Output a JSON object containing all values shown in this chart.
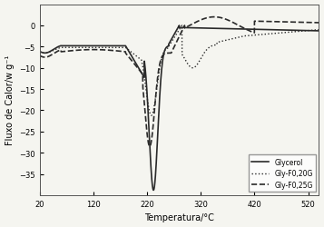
{
  "title": "",
  "xlabel": "Temperatura/°C",
  "ylabel": "Fluxo de Calor/w g⁻¹",
  "xlim": [
    20,
    540
  ],
  "ylim": [
    -40,
    5
  ],
  "xticks": [
    20,
    120,
    220,
    320,
    420,
    520
  ],
  "yticks": [
    0,
    -5,
    -10,
    -15,
    -20,
    -25,
    -30,
    -35
  ],
  "legend": [
    "Glycerol",
    "Gly-F0,20G",
    "Gly-F0,25G"
  ],
  "line_colors": [
    "#2a2a2a",
    "#2a2a2a",
    "#2a2a2a"
  ],
  "background_color": "#f5f5f0",
  "figsize": [
    3.57,
    2.51
  ],
  "dpi": 100
}
